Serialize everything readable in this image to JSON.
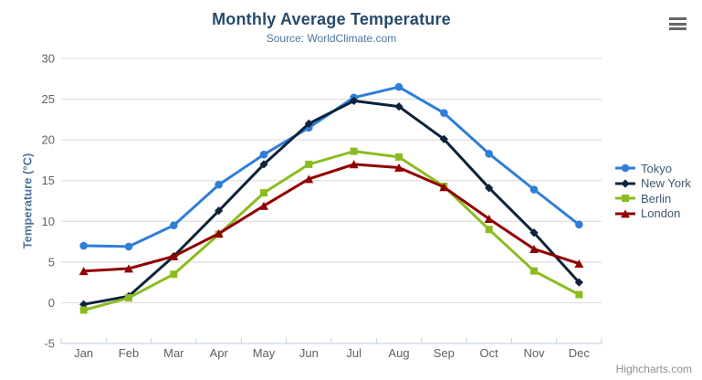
{
  "header": {
    "title": "Monthly Average Temperature",
    "subtitle": "Source: WorldClimate.com"
  },
  "credits": {
    "label": "Highcharts.com"
  },
  "chart_data": {
    "type": "line",
    "title": "Monthly Average Temperature",
    "subtitle": "Source: WorldClimate.com",
    "xlabel": "",
    "ylabel": "Temperature (°C)",
    "ylim": [
      -5,
      30
    ],
    "yticks": [
      30,
      25,
      20,
      15,
      10,
      5,
      0,
      -5
    ],
    "grid": "on",
    "legend_position": "right",
    "categories": [
      "Jan",
      "Feb",
      "Mar",
      "Apr",
      "May",
      "Jun",
      "Jul",
      "Aug",
      "Sep",
      "Oct",
      "Nov",
      "Dec"
    ],
    "series": [
      {
        "name": "Tokyo",
        "color": "#2f7ed8",
        "symbol": "circle",
        "values": [
          7.0,
          6.9,
          9.5,
          14.5,
          18.2,
          21.5,
          25.2,
          26.5,
          23.3,
          18.3,
          13.9,
          9.6
        ]
      },
      {
        "name": "New York",
        "color": "#0d233a",
        "symbol": "diamond",
        "values": [
          -0.2,
          0.8,
          5.7,
          11.3,
          17.0,
          22.0,
          24.8,
          24.1,
          20.1,
          14.1,
          8.6,
          2.5
        ]
      },
      {
        "name": "Berlin",
        "color": "#8bbc21",
        "symbol": "square",
        "values": [
          -0.9,
          0.6,
          3.5,
          8.4,
          13.5,
          17.0,
          18.6,
          17.9,
          14.3,
          9.0,
          3.9,
          1.0
        ]
      },
      {
        "name": "London",
        "color": "#910000",
        "symbol": "triangle",
        "values": [
          3.9,
          4.2,
          5.7,
          8.5,
          11.9,
          15.2,
          17.0,
          16.6,
          14.2,
          10.3,
          6.6,
          4.8
        ]
      }
    ],
    "theme_colors": {
      "title": "#274b6d",
      "subtitle": "#4d759e",
      "axis_title": "#4d759e",
      "axis_label": "#606060",
      "gridline": "#d8d8d8",
      "axis_line": "#c0d0e0",
      "legend_text": "#3e576f",
      "credits_text": "#909090",
      "menu_icon": "#666666"
    }
  }
}
